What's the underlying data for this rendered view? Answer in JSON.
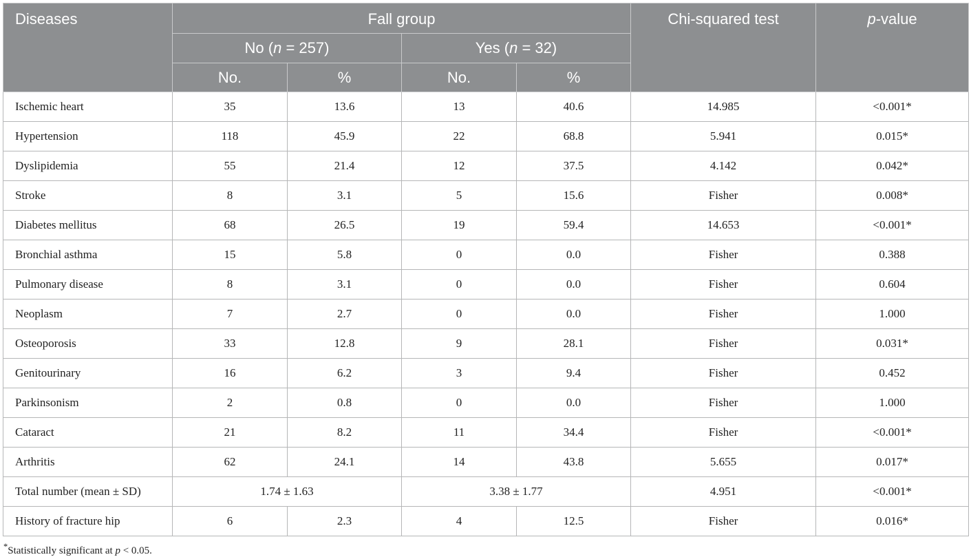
{
  "header": {
    "diseases": "Diseases",
    "fall_group": "Fall group",
    "chi_squared": "Chi-squared test",
    "p_value_p": "p",
    "p_value_rest": "-value",
    "no_group_pre": "No (",
    "no_group_n": "n",
    "no_group_post": " = 257)",
    "yes_group_pre": "Yes (",
    "yes_group_n": "n",
    "yes_group_post": " = 32)",
    "col_no": "No.",
    "col_pct": "%"
  },
  "rows": [
    {
      "name": "Ischemic heart",
      "no_n": "35",
      "no_pct": "13.6",
      "yes_n": "13",
      "yes_pct": "40.6",
      "chi": "14.985",
      "p": "<0.001*"
    },
    {
      "name": "Hypertension",
      "no_n": "118",
      "no_pct": "45.9",
      "yes_n": "22",
      "yes_pct": "68.8",
      "chi": "5.941",
      "p": "0.015*"
    },
    {
      "name": "Dyslipidemia",
      "no_n": "55",
      "no_pct": "21.4",
      "yes_n": "12",
      "yes_pct": "37.5",
      "chi": "4.142",
      "p": "0.042*"
    },
    {
      "name": "Stroke",
      "no_n": "8",
      "no_pct": "3.1",
      "yes_n": "5",
      "yes_pct": "15.6",
      "chi": "Fisher",
      "p": "0.008*"
    },
    {
      "name": "Diabetes mellitus",
      "no_n": "68",
      "no_pct": "26.5",
      "yes_n": "19",
      "yes_pct": "59.4",
      "chi": "14.653",
      "p": "<0.001*"
    },
    {
      "name": "Bronchial asthma",
      "no_n": "15",
      "no_pct": "5.8",
      "yes_n": "0",
      "yes_pct": "0.0",
      "chi": "Fisher",
      "p": "0.388"
    },
    {
      "name": "Pulmonary disease",
      "no_n": "8",
      "no_pct": "3.1",
      "yes_n": "0",
      "yes_pct": "0.0",
      "chi": "Fisher",
      "p": "0.604"
    },
    {
      "name": "Neoplasm",
      "no_n": "7",
      "no_pct": "2.7",
      "yes_n": "0",
      "yes_pct": "0.0",
      "chi": "Fisher",
      "p": "1.000"
    },
    {
      "name": "Osteoporosis",
      "no_n": "33",
      "no_pct": "12.8",
      "yes_n": "9",
      "yes_pct": "28.1",
      "chi": "Fisher",
      "p": "0.031*"
    },
    {
      "name": "Genitourinary",
      "no_n": "16",
      "no_pct": "6.2",
      "yes_n": "3",
      "yes_pct": "9.4",
      "chi": "Fisher",
      "p": "0.452"
    },
    {
      "name": "Parkinsonism",
      "no_n": "2",
      "no_pct": "0.8",
      "yes_n": "0",
      "yes_pct": "0.0",
      "chi": "Fisher",
      "p": "1.000"
    },
    {
      "name": "Cataract",
      "no_n": "21",
      "no_pct": "8.2",
      "yes_n": "11",
      "yes_pct": "34.4",
      "chi": "Fisher",
      "p": "<0.001*"
    }
  ],
  "arthritis": {
    "name": "Arthritis",
    "no_n": "62",
    "no_pct": "24.1",
    "yes_n": "14",
    "yes_pct": "43.8",
    "chi": "5.655",
    "p": "0.017*"
  },
  "total": {
    "name": "Total number (mean ± SD)",
    "no": "1.74 ± 1.63",
    "yes": "3.38 ± 1.77",
    "chi": "4.951",
    "p": "<0.001*"
  },
  "hip": {
    "name": "History of fracture hip",
    "no_n": "6",
    "no_pct": "2.3",
    "yes_n": "4",
    "yes_pct": "12.5",
    "chi": "Fisher",
    "p": "0.016*"
  },
  "footnote": {
    "star": "*",
    "text_pre": "Statistically significant at ",
    "p": "p",
    "text_post": " < 0.05."
  }
}
